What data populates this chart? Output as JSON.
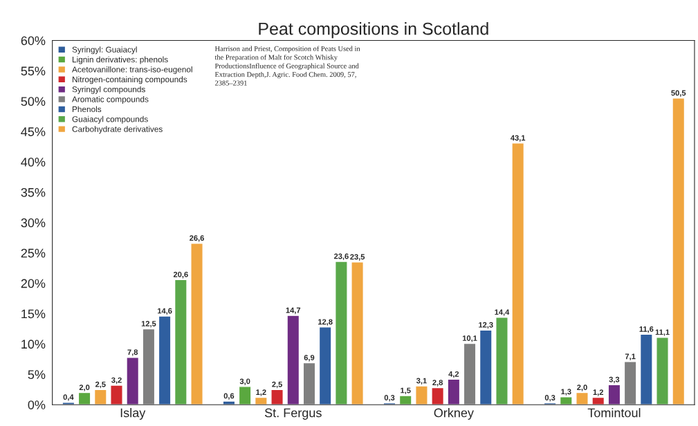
{
  "chart_data": {
    "type": "bar",
    "title": "Peat compositions in Scotland",
    "categories": [
      "Islay",
      "St. Fergus",
      "Orkney",
      "Tomintoul"
    ],
    "series": [
      {
        "name": "Syringyl: Guaiacyl",
        "color": "#2e5c9a",
        "values": [
          0.4,
          0.6,
          0.3,
          0.3
        ],
        "value_labels": [
          "0,4",
          "0,6",
          "0,3",
          "0,3"
        ]
      },
      {
        "name": "Lignin derivatives: phenols",
        "color": "#5aa83f",
        "values": [
          2.0,
          3.0,
          1.5,
          1.3
        ],
        "value_labels": [
          "2,0",
          "3,0",
          "1,5",
          "1,3"
        ]
      },
      {
        "name": "Acetovanillone: trans-iso-eugenol",
        "color": "#f0a640",
        "values": [
          2.5,
          1.2,
          3.1,
          2.0
        ],
        "value_labels": [
          "2,5",
          "1,2",
          "3,1",
          "2,0"
        ]
      },
      {
        "name": "Nitrogen-containing compounds",
        "color": "#d1292e",
        "values": [
          3.2,
          2.5,
          2.8,
          1.2
        ],
        "value_labels": [
          "3,2",
          "2,5",
          "2,8",
          "1,2"
        ]
      },
      {
        "name": "Syringyl compounds",
        "color": "#6f2c84",
        "values": [
          7.8,
          14.7,
          4.2,
          3.3
        ],
        "value_labels": [
          "7,8",
          "14,7",
          "4,2",
          "3,3"
        ]
      },
      {
        "name": "Aromatic compounds",
        "color": "#7f7f7f",
        "values": [
          12.5,
          6.9,
          10.1,
          7.1
        ],
        "value_labels": [
          "12,5",
          "6,9",
          "10,1",
          "7,1"
        ]
      },
      {
        "name": "Phenols",
        "color": "#2f5fa0",
        "values": [
          14.6,
          12.8,
          12.3,
          11.6
        ],
        "value_labels": [
          "14,6",
          "12,8",
          "12,3",
          "11,6"
        ]
      },
      {
        "name": "Guaiacyl compounds",
        "color": "#5aa84a",
        "values": [
          20.6,
          23.6,
          14.4,
          11.1
        ],
        "value_labels": [
          "20,6",
          "23,6",
          "14,4",
          "11,1"
        ]
      },
      {
        "name": "Carbohydrate derivatives",
        "color": "#f0a640",
        "values": [
          26.6,
          23.5,
          43.1,
          50.5
        ],
        "value_labels": [
          "26,6",
          "23,5",
          "43,1",
          "50,5"
        ]
      }
    ],
    "ylim": [
      0,
      60
    ],
    "yticks": [
      {
        "value": 0,
        "label": "0%"
      },
      {
        "value": 5,
        "label": "5%"
      },
      {
        "value": 10,
        "label": "10%"
      },
      {
        "value": 15,
        "label": "15%"
      },
      {
        "value": 20,
        "label": "20%"
      },
      {
        "value": 25,
        "label": "25%"
      },
      {
        "value": 30,
        "label": "30%"
      },
      {
        "value": 35,
        "label": "35%"
      },
      {
        "value": 40,
        "label": "40%"
      },
      {
        "value": 45,
        "label": "45%"
      },
      {
        "value": 50,
        "label": "50%"
      },
      {
        "value": 55,
        "label": "55%"
      },
      {
        "value": 60,
        "label": "60%"
      }
    ],
    "grid": false,
    "legend": "top left",
    "annotations": [
      "Harrison and Priest, Composition of Peats Used in\nthe Preparation of Malt for Scotch Whisky\nProductionsInfluence of Geographical Source and\nExtraction Depth,J. Agric. Food Chem. 2009, 57,\n2385–2391"
    ]
  }
}
